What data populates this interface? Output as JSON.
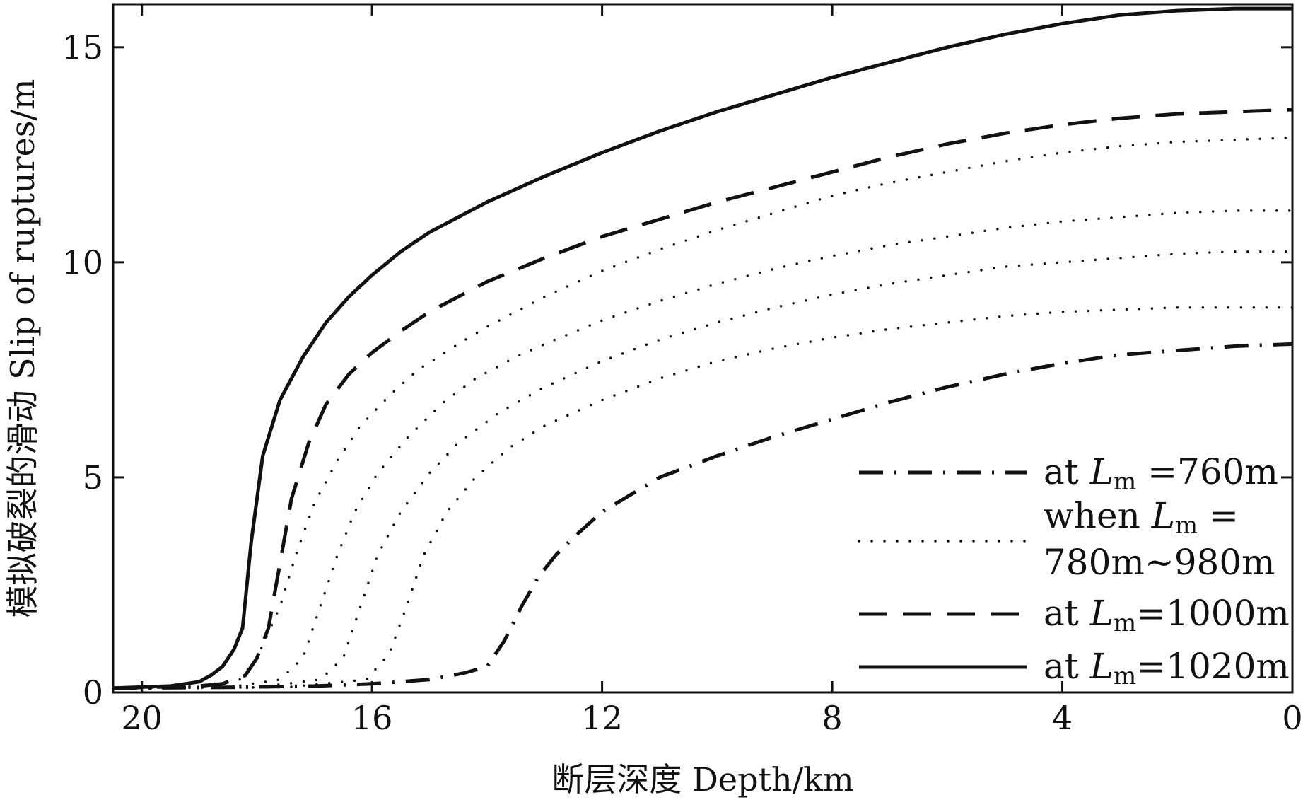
{
  "chart_data": {
    "type": "line",
    "xlabel": "断层深度 Depth/km",
    "ylabel": "模拟破裂的滑动 Slip of ruptures/m",
    "xlim": [
      20.5,
      0
    ],
    "ylim": [
      0,
      16
    ],
    "x_reversed": true,
    "x_ticks": [
      "20",
      "16",
      "12",
      "8",
      "4",
      "0"
    ],
    "y_ticks": [
      "0",
      "5",
      "10",
      "15"
    ],
    "grid": false,
    "legend_position": "bottom-right",
    "legend": [
      {
        "prefix": "at ",
        "L": "L",
        "sub": "m",
        "suffix": " =760m",
        "style": "dash-dot"
      },
      {
        "prefix": "when ",
        "L": "L",
        "sub": "m",
        "suffix": " =",
        "line2": "780m~980m",
        "style": "dotted"
      },
      {
        "prefix": "at ",
        "L": "L",
        "sub": "m",
        "suffix": "=1000m",
        "style": "dashed"
      },
      {
        "prefix": "at ",
        "L": "L",
        "sub": "m",
        "suffix": "=1020m",
        "style": "solid"
      }
    ],
    "series": [
      {
        "style": "solid",
        "x": [
          20.5,
          19.5,
          19.0,
          18.8,
          18.6,
          18.4,
          18.25,
          18.1,
          17.9,
          17.6,
          17.2,
          16.8,
          16.4,
          16.0,
          15.5,
          15.0,
          14.5,
          14.0,
          13.0,
          12.0,
          11.0,
          10.0,
          9.0,
          8.0,
          7.0,
          6.0,
          5.0,
          4.0,
          3.0,
          2.0,
          1.0,
          0.0
        ],
        "y": [
          0.1,
          0.15,
          0.25,
          0.4,
          0.6,
          1.0,
          1.5,
          3.5,
          5.5,
          6.8,
          7.8,
          8.6,
          9.2,
          9.7,
          10.25,
          10.7,
          11.05,
          11.4,
          12.0,
          12.55,
          13.05,
          13.5,
          13.9,
          14.3,
          14.65,
          15.0,
          15.3,
          15.55,
          15.75,
          15.85,
          15.9,
          15.9
        ]
      },
      {
        "style": "dashed",
        "x": [
          20.5,
          19.0,
          18.6,
          18.2,
          18.0,
          17.8,
          17.6,
          17.4,
          17.1,
          16.8,
          16.4,
          16.0,
          15.5,
          15.0,
          14.5,
          14.0,
          13.0,
          12.0,
          11.0,
          10.0,
          9.0,
          8.0,
          7.0,
          6.0,
          5.0,
          4.0,
          3.0,
          2.0,
          1.0,
          0.0
        ],
        "y": [
          0.1,
          0.15,
          0.2,
          0.4,
          0.8,
          1.5,
          3.0,
          4.5,
          5.8,
          6.7,
          7.4,
          7.9,
          8.4,
          8.85,
          9.2,
          9.55,
          10.1,
          10.6,
          11.0,
          11.4,
          11.75,
          12.1,
          12.45,
          12.75,
          13.0,
          13.2,
          13.35,
          13.45,
          13.5,
          13.55
        ]
      },
      {
        "style": "dotted",
        "x": [
          20.5,
          19.0,
          18.3,
          18.0,
          17.6,
          17.3,
          17.0,
          16.6,
          16.2,
          15.7,
          15.2,
          14.5,
          14.0,
          13.0,
          12.0,
          11.0,
          10.0,
          9.0,
          8.0,
          7.0,
          6.0,
          5.0,
          4.0,
          3.0,
          2.0,
          1.0,
          0.0
        ],
        "y": [
          0.1,
          0.15,
          0.3,
          0.8,
          2.0,
          3.3,
          4.4,
          5.4,
          6.2,
          6.9,
          7.5,
          8.1,
          8.5,
          9.2,
          9.8,
          10.3,
          10.75,
          11.15,
          11.55,
          11.85,
          12.1,
          12.35,
          12.55,
          12.7,
          12.8,
          12.85,
          12.9
        ]
      },
      {
        "style": "dotted",
        "x": [
          20.5,
          18.5,
          17.6,
          17.2,
          16.9,
          16.6,
          16.3,
          15.9,
          15.4,
          14.8,
          14.2,
          13.5,
          13.0,
          12.0,
          11.0,
          10.0,
          9.0,
          8.0,
          7.0,
          6.0,
          5.0,
          4.0,
          3.0,
          2.0,
          1.0,
          0.0
        ],
        "y": [
          0.1,
          0.12,
          0.3,
          0.8,
          2.0,
          3.2,
          4.2,
          5.1,
          5.9,
          6.7,
          7.3,
          7.8,
          8.1,
          8.65,
          9.1,
          9.5,
          9.85,
          10.15,
          10.4,
          10.6,
          10.8,
          10.95,
          11.05,
          11.15,
          11.2,
          11.2
        ]
      },
      {
        "style": "dotted",
        "x": [
          20.5,
          18.0,
          16.9,
          16.5,
          16.2,
          15.9,
          15.5,
          15.0,
          14.5,
          13.8,
          13.0,
          12.0,
          11.0,
          10.0,
          9.0,
          8.0,
          7.0,
          6.0,
          5.0,
          4.0,
          3.0,
          2.0,
          1.0,
          0.0
        ],
        "y": [
          0.1,
          0.12,
          0.3,
          0.8,
          2.0,
          3.2,
          4.2,
          5.1,
          5.8,
          6.5,
          7.1,
          7.7,
          8.2,
          8.6,
          8.95,
          9.25,
          9.5,
          9.7,
          9.9,
          10.0,
          10.1,
          10.2,
          10.25,
          10.25
        ]
      },
      {
        "style": "dotted",
        "x": [
          20.5,
          17.5,
          16.1,
          15.7,
          15.4,
          15.1,
          14.7,
          14.2,
          13.6,
          13.0,
          12.0,
          11.0,
          10.0,
          9.0,
          8.0,
          7.0,
          6.0,
          5.0,
          4.0,
          3.0,
          2.0,
          1.0,
          0.0
        ],
        "y": [
          0.1,
          0.12,
          0.3,
          0.9,
          2.0,
          3.2,
          4.2,
          5.0,
          5.7,
          6.2,
          6.8,
          7.3,
          7.7,
          8.0,
          8.25,
          8.45,
          8.6,
          8.75,
          8.85,
          8.9,
          8.95,
          8.95,
          8.95
        ]
      },
      {
        "style": "dash-dot",
        "x": [
          20.5,
          18.5,
          17.0,
          16.0,
          15.0,
          14.4,
          14.0,
          13.7,
          13.4,
          13.1,
          12.8,
          12.5,
          12.0,
          11.5,
          11.0,
          10.0,
          9.0,
          8.0,
          7.0,
          6.0,
          5.0,
          4.0,
          3.0,
          2.0,
          1.0,
          0.0
        ],
        "y": [
          0.1,
          0.12,
          0.15,
          0.2,
          0.3,
          0.45,
          0.6,
          1.2,
          2.0,
          2.7,
          3.2,
          3.6,
          4.2,
          4.6,
          5.0,
          5.5,
          5.95,
          6.35,
          6.75,
          7.1,
          7.4,
          7.65,
          7.85,
          7.95,
          8.05,
          8.1
        ]
      }
    ]
  }
}
